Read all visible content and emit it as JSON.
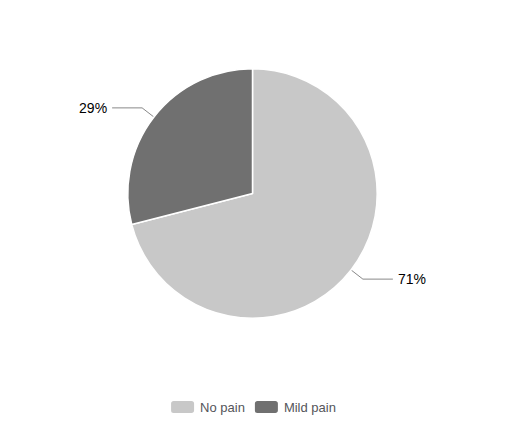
{
  "chart_data": {
    "type": "pie",
    "categories": [
      "No pain",
      "Mild pain"
    ],
    "values": [
      71,
      29
    ],
    "value_labels": [
      "71%",
      "29%"
    ],
    "data_labels": true,
    "colors": [
      "#c8c8c8",
      "#707070"
    ],
    "legend": "bottom"
  }
}
